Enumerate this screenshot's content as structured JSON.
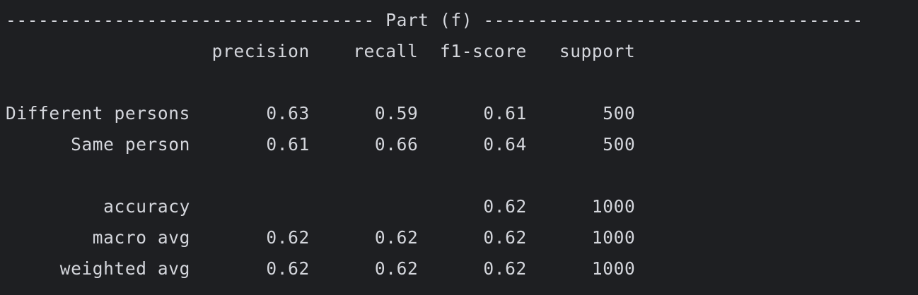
{
  "terminal": {
    "lines": [
      "---------------------------------- Part (f) -----------------------------------",
      "                   precision    recall  f1-score   support",
      "",
      "Different persons       0.63      0.59      0.61       500",
      "      Same person       0.61      0.66      0.64       500",
      "",
      "         accuracy                           0.62      1000",
      "        macro avg       0.62      0.62      0.62      1000",
      "     weighted avg       0.62      0.62      0.62      1000"
    ]
  },
  "colors": {
    "background": "#1e1f22",
    "foreground": "#d4d6dc"
  }
}
